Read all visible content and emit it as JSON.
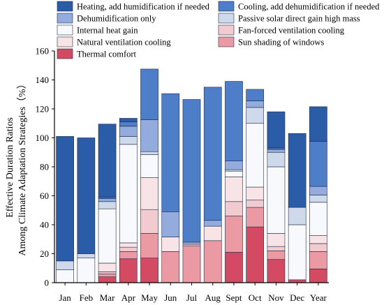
{
  "chart_data": {
    "type": "bar",
    "stacked": true,
    "ylabel_line1": "Effective Duration Ratios",
    "ylabel_line2": "Among Climate Adaptation Strategies（%）",
    "xlabel": "",
    "ylim": [
      0,
      160
    ],
    "yticks": [
      0,
      20,
      40,
      60,
      80,
      100,
      120,
      140,
      160
    ],
    "grid": false,
    "legend_position": "top",
    "categories": [
      "Jan",
      "Feb",
      "Mar",
      "Apr",
      "May",
      "Jun",
      "Jul",
      "Aug",
      "Sept",
      "Oct",
      "Nov",
      "Dec",
      "Year"
    ],
    "series": [
      {
        "name": "Thermal comfort",
        "color": "#d44a63",
        "values": [
          0,
          0,
          4,
          16.5,
          17,
          0,
          0,
          0,
          21,
          38.5,
          16,
          2,
          9.5
        ]
      },
      {
        "name": "Sun shading of windows",
        "color": "#eb9aa3",
        "values": [
          0,
          0,
          2,
          5,
          17,
          21.5,
          25.5,
          29,
          25,
          13.5,
          6,
          0,
          12
        ]
      },
      {
        "name": "Fan-forced ventilation cooling",
        "color": "#f2cbd0",
        "values": [
          0,
          0,
          1.5,
          3,
          16.5,
          0,
          0,
          0,
          10,
          5,
          3,
          0,
          5.5
        ]
      },
      {
        "name": "Natural ventilation cooling",
        "color": "#f8e4e6",
        "values": [
          0,
          0,
          6,
          3,
          22,
          10,
          1,
          10,
          17,
          9,
          9,
          0,
          5.5
        ]
      },
      {
        "name": "Internal heat gain",
        "color": "#f7f9fc",
        "values": [
          9,
          17,
          37.5,
          68,
          16,
          0,
          0,
          0,
          4,
          44,
          46,
          38,
          23
        ]
      },
      {
        "name": "Passive solar direct gain high mass",
        "color": "#ced9ec",
        "values": [
          6,
          3,
          5,
          5.5,
          2,
          0,
          0,
          0,
          1,
          11,
          10,
          12,
          5
        ]
      },
      {
        "name": "Dehumidification only",
        "color": "#93acdd",
        "values": [
          0,
          0,
          2,
          7,
          22,
          17.5,
          1.5,
          4,
          6,
          4.5,
          2,
          0,
          6
        ]
      },
      {
        "name": "Cooling, add dehumidification if needed",
        "color": "#4f7ec9",
        "values": [
          0,
          0,
          1,
          3,
          35,
          81.5,
          98.5,
          92,
          55,
          8,
          1,
          0,
          31
        ]
      },
      {
        "name": "Heating, add humidification if needed",
        "color": "#2b5ca8",
        "values": [
          86,
          80,
          50.5,
          2.5,
          0,
          0,
          0,
          0,
          0,
          0,
          25,
          51,
          24
        ]
      }
    ]
  },
  "legend_order": [
    "Heating, add humidification if needed",
    "Cooling, add dehumidification if needed",
    "Dehumidification only",
    "Passive solar direct gain high mass",
    "Internal heat gain",
    "Fan-forced ventilation cooling",
    "Natural ventilation cooling",
    "Sun shading of windows",
    "Thermal comfort"
  ]
}
